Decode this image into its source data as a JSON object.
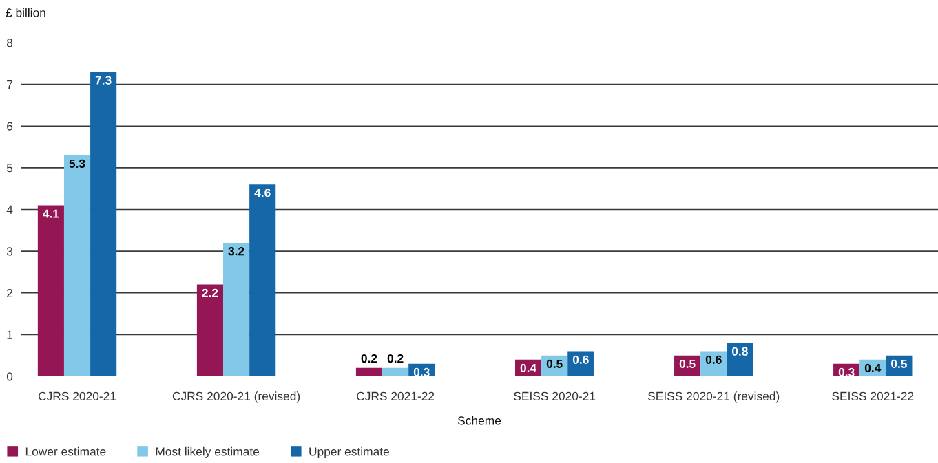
{
  "chart_data": {
    "type": "bar",
    "ylabel": "£ billion",
    "xlabel": "Scheme",
    "categories": [
      "CJRS 2020-21",
      "CJRS 2020-21 (revised)",
      "CJRS 2021-22",
      "SEISS 2020-21",
      "SEISS 2020-21 (revised)",
      "SEISS 2021-22"
    ],
    "series": [
      {
        "name": "Lower estimate",
        "color": "#951654",
        "values": [
          4.1,
          2.2,
          0.2,
          0.4,
          0.5,
          0.3
        ]
      },
      {
        "name": "Most likely estimate",
        "color": "#82c8e8",
        "values": [
          5.3,
          3.2,
          0.2,
          0.5,
          0.6,
          0.4
        ]
      },
      {
        "name": "Upper estimate",
        "color": "#1667a8",
        "values": [
          7.3,
          4.6,
          0.3,
          0.6,
          0.8,
          0.5
        ]
      }
    ],
    "ylim": [
      0,
      8
    ],
    "yticks": [
      0,
      1,
      2,
      3,
      4,
      5,
      6,
      7,
      8
    ],
    "grid": "y",
    "legend": "bottom left",
    "data_labels": true
  }
}
